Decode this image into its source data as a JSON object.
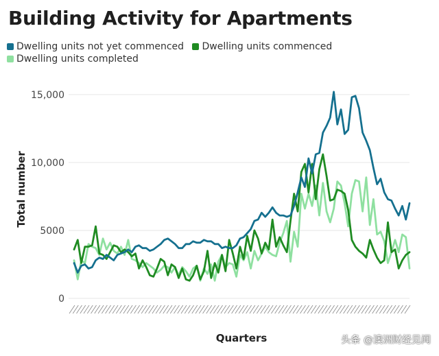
{
  "title": "Building Activity for Apartments",
  "watermark": "头条 @澳洲财经见闻",
  "chart_data": {
    "type": "line",
    "xlabel": "Quarters",
    "ylabel": "Total number",
    "ylim": [
      0,
      16000
    ],
    "yticks": [
      0,
      5000,
      10000,
      15000
    ],
    "ytick_labels": [
      "0",
      "5000",
      "10,000",
      "15,000"
    ],
    "grid": "horizontal",
    "legend": "top-left",
    "n_points": 94,
    "series": [
      {
        "name": "Dwelling units not yet commenced",
        "color": "#15708f",
        "values": [
          2600,
          1900,
          2400,
          2500,
          2200,
          2300,
          2800,
          3000,
          2900,
          3200,
          3000,
          2800,
          3200,
          3300,
          3400,
          3600,
          3400,
          3800,
          3900,
          3700,
          3700,
          3500,
          3600,
          3800,
          4000,
          4300,
          4400,
          4200,
          4000,
          3700,
          3700,
          4000,
          4000,
          4200,
          4100,
          4100,
          4300,
          4200,
          4200,
          4000,
          4000,
          3700,
          3800,
          3700,
          3700,
          3900,
          4400,
          4500,
          4800,
          5100,
          5700,
          5800,
          6300,
          6000,
          6300,
          6700,
          6300,
          6100,
          6100,
          6000,
          6100,
          6800,
          7800,
          8900,
          8200,
          10300,
          9200,
          10600,
          10700,
          12200,
          12700,
          13300,
          15200,
          12800,
          13900,
          12100,
          12400,
          14800,
          14900,
          14000,
          12200,
          11600,
          10900,
          9600,
          8400,
          8800,
          7800,
          7300,
          7200,
          6600,
          6100,
          6800,
          5800,
          7000
        ]
      },
      {
        "name": "Dwelling units commenced",
        "color": "#1f8b22",
        "values": [
          3600,
          4300,
          2600,
          3800,
          3800,
          3900,
          5300,
          3300,
          3200,
          2900,
          3400,
          3900,
          3800,
          3400,
          3600,
          3400,
          3100,
          3300,
          2200,
          2800,
          2300,
          1700,
          1600,
          2200,
          2900,
          2700,
          1700,
          2500,
          2300,
          1500,
          2200,
          1400,
          1300,
          1700,
          2400,
          1400,
          2000,
          3500,
          1500,
          2600,
          1900,
          3200,
          2000,
          4300,
          3300,
          2200,
          3800,
          2900,
          4600,
          3500,
          5000,
          4400,
          3300,
          4100,
          3600,
          5800,
          3800,
          4500,
          3900,
          3400,
          5700,
          7700,
          6400,
          9300,
          9900,
          7800,
          9900,
          7300,
          9500,
          10600,
          9000,
          7200,
          7300,
          8000,
          7900,
          7700,
          6500,
          4300,
          3800,
          3500,
          3300,
          3000,
          4300,
          3600,
          3000,
          2600,
          2800,
          5600,
          3400,
          3600,
          2200,
          2800,
          3200,
          3400
        ]
      },
      {
        "name": "Dwelling units completed",
        "color": "#8fe0a0",
        "values": [
          2800,
          1400,
          2800,
          2600,
          4000,
          3800,
          3700,
          3200,
          4400,
          3600,
          4100,
          3500,
          3300,
          3800,
          3200,
          4300,
          2900,
          2800,
          2600,
          2300,
          2600,
          2400,
          2200,
          1900,
          2100,
          2400,
          2300,
          1900,
          2300,
          1700,
          2300,
          2000,
          1600,
          2200,
          2400,
          1300,
          2200,
          1800,
          2500,
          1300,
          2700,
          3200,
          2300,
          2600,
          2500,
          1600,
          3200,
          2800,
          3400,
          2200,
          3500,
          2800,
          3300,
          3800,
          3400,
          3200,
          3100,
          4100,
          4800,
          5700,
          2700,
          4900,
          3800,
          7700,
          6600,
          7700,
          6800,
          8300,
          6100,
          8500,
          6400,
          5600,
          6600,
          8600,
          8300,
          7000,
          5300,
          7700,
          8700,
          8600,
          6400,
          8900,
          5400,
          7300,
          4700,
          4900,
          4200,
          2600,
          3400,
          4300,
          3400,
          4700,
          4500,
          2200
        ]
      }
    ]
  }
}
